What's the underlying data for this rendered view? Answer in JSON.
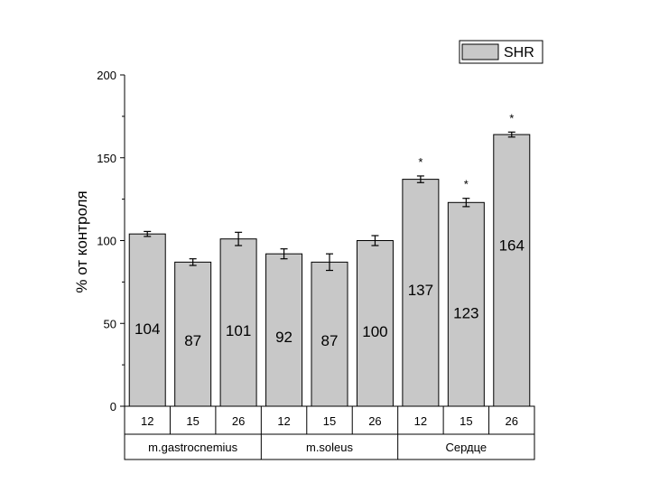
{
  "chart_data": {
    "type": "bar",
    "ylabel": "% от контроля",
    "ylim": [
      0,
      200
    ],
    "yticks": [
      0,
      50,
      100,
      150,
      200
    ],
    "legend": {
      "label": "SHR",
      "position": "top-right"
    },
    "groups": [
      {
        "label": "m.gastrocnemius",
        "categories": [
          "12",
          "15",
          "26"
        ]
      },
      {
        "label": "m.soleus",
        "categories": [
          "12",
          "15",
          "26"
        ]
      },
      {
        "label": "Сердце",
        "categories": [
          "12",
          "15",
          "26"
        ]
      }
    ],
    "series": [
      {
        "name": "SHR",
        "color": "#c8c8c8",
        "values": [
          104,
          87,
          101,
          92,
          87,
          100,
          137,
          123,
          164
        ],
        "labels": [
          "104",
          "87",
          "101",
          "92",
          "87",
          "100",
          "137",
          "123",
          "164"
        ],
        "errors": [
          1.5,
          2,
          4,
          3,
          5,
          3,
          2,
          2.5,
          1.5
        ],
        "significance": [
          "",
          "",
          "",
          "",
          "",
          "",
          "*",
          "*",
          "*"
        ]
      }
    ]
  }
}
